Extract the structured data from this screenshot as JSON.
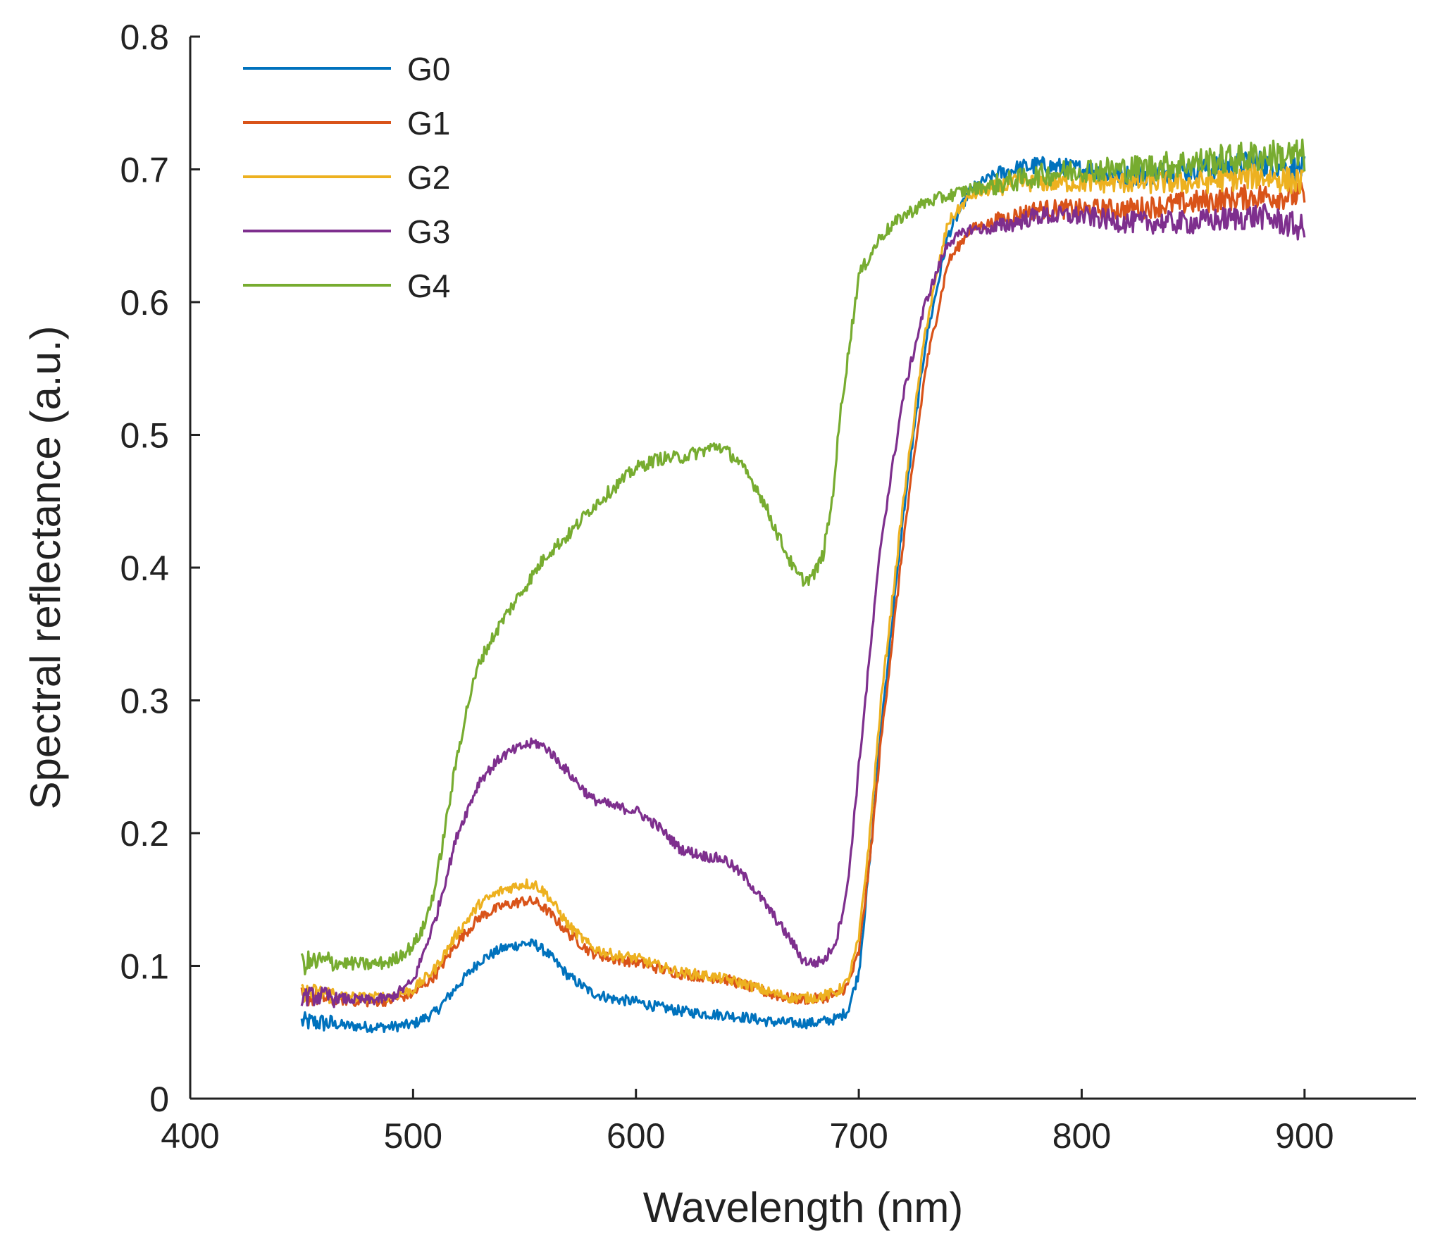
{
  "chart_data": {
    "type": "line",
    "title": "",
    "xlabel": "Wavelength (nm)",
    "ylabel": "Spectral reflectance (a.u.)",
    "xlim": [
      400,
      950
    ],
    "ylim": [
      0,
      0.8
    ],
    "xticks": [
      400,
      500,
      600,
      700,
      800,
      900
    ],
    "xtick_labels": [
      "400",
      "500",
      "600",
      "700",
      "800",
      "900"
    ],
    "yticks": [
      0,
      0.1,
      0.2,
      0.3,
      0.4,
      0.5,
      0.6,
      0.7,
      0.8
    ],
    "ytick_labels": [
      "0",
      "0.1",
      "0.2",
      "0.3",
      "0.4",
      "0.5",
      "0.6",
      "0.7",
      "0.8"
    ],
    "grid": false,
    "legend_position": "top-left",
    "series": [
      {
        "name": "G0",
        "color": "#0072BD",
        "noise": 0.004,
        "x": [
          450,
          460,
          470,
          480,
          490,
          500,
          510,
          520,
          530,
          540,
          550,
          555,
          560,
          570,
          580,
          590,
          600,
          610,
          620,
          630,
          640,
          650,
          660,
          670,
          680,
          690,
          695,
          700,
          705,
          710,
          720,
          730,
          740,
          750,
          760,
          770,
          780,
          800,
          820,
          850,
          880,
          900
        ],
        "y": [
          0.058,
          0.057,
          0.055,
          0.054,
          0.054,
          0.056,
          0.065,
          0.085,
          0.104,
          0.113,
          0.117,
          0.116,
          0.11,
          0.092,
          0.08,
          0.075,
          0.073,
          0.069,
          0.066,
          0.064,
          0.063,
          0.061,
          0.058,
          0.057,
          0.057,
          0.06,
          0.066,
          0.095,
          0.18,
          0.28,
          0.44,
          0.57,
          0.65,
          0.685,
          0.695,
          0.7,
          0.703,
          0.7,
          0.695,
          0.7,
          0.705,
          0.7
        ]
      },
      {
        "name": "G1",
        "color": "#D95319",
        "noise": 0.004,
        "x": [
          450,
          460,
          470,
          480,
          490,
          500,
          510,
          520,
          530,
          540,
          550,
          555,
          560,
          570,
          580,
          590,
          600,
          610,
          620,
          630,
          640,
          650,
          660,
          670,
          680,
          690,
          695,
          700,
          705,
          710,
          720,
          730,
          740,
          750,
          760,
          770,
          780,
          800,
          820,
          850,
          880,
          900
        ],
        "y": [
          0.077,
          0.076,
          0.074,
          0.073,
          0.074,
          0.079,
          0.093,
          0.118,
          0.137,
          0.145,
          0.149,
          0.148,
          0.142,
          0.124,
          0.11,
          0.105,
          0.103,
          0.098,
          0.094,
          0.092,
          0.09,
          0.085,
          0.079,
          0.075,
          0.075,
          0.078,
          0.085,
          0.11,
          0.18,
          0.27,
          0.42,
          0.55,
          0.63,
          0.655,
          0.66,
          0.665,
          0.67,
          0.67,
          0.67,
          0.675,
          0.68,
          0.68
        ]
      },
      {
        "name": "G2",
        "color": "#EDB120",
        "noise": 0.004,
        "x": [
          450,
          460,
          470,
          480,
          490,
          500,
          510,
          520,
          530,
          540,
          550,
          555,
          560,
          570,
          580,
          590,
          600,
          610,
          620,
          630,
          640,
          650,
          660,
          670,
          680,
          690,
          695,
          700,
          705,
          710,
          720,
          730,
          740,
          750,
          760,
          770,
          780,
          800,
          820,
          850,
          880,
          900
        ],
        "y": [
          0.08,
          0.079,
          0.077,
          0.076,
          0.077,
          0.082,
          0.098,
          0.125,
          0.147,
          0.157,
          0.162,
          0.161,
          0.154,
          0.13,
          0.114,
          0.108,
          0.106,
          0.1,
          0.095,
          0.093,
          0.09,
          0.086,
          0.08,
          0.076,
          0.076,
          0.08,
          0.088,
          0.12,
          0.2,
          0.3,
          0.45,
          0.58,
          0.66,
          0.68,
          0.685,
          0.69,
          0.69,
          0.69,
          0.69,
          0.69,
          0.695,
          0.69
        ]
      },
      {
        "name": "G3",
        "color": "#7E2F8E",
        "noise": 0.004,
        "x": [
          450,
          460,
          470,
          480,
          490,
          500,
          510,
          520,
          530,
          540,
          550,
          555,
          560,
          570,
          580,
          590,
          600,
          610,
          620,
          630,
          640,
          650,
          660,
          670,
          675,
          680,
          685,
          690,
          695,
          700,
          710,
          720,
          730,
          740,
          750,
          760,
          770,
          780,
          800,
          820,
          850,
          880,
          900
        ],
        "y": [
          0.077,
          0.077,
          0.075,
          0.074,
          0.076,
          0.088,
          0.135,
          0.2,
          0.24,
          0.258,
          0.266,
          0.268,
          0.264,
          0.245,
          0.226,
          0.22,
          0.217,
          0.205,
          0.188,
          0.183,
          0.18,
          0.165,
          0.142,
          0.118,
          0.104,
          0.102,
          0.105,
          0.12,
          0.16,
          0.25,
          0.42,
          0.53,
          0.6,
          0.645,
          0.655,
          0.655,
          0.66,
          0.665,
          0.665,
          0.66,
          0.66,
          0.665,
          0.655
        ]
      },
      {
        "name": "G4",
        "color": "#77AC30",
        "noise": 0.005,
        "x": [
          450,
          460,
          470,
          480,
          490,
          500,
          505,
          510,
          515,
          520,
          525,
          530,
          540,
          550,
          560,
          570,
          580,
          590,
          600,
          610,
          620,
          630,
          637,
          645,
          655,
          665,
          672,
          676,
          680,
          684,
          688,
          692,
          700,
          710,
          720,
          730,
          740,
          750,
          760,
          780,
          800,
          820,
          850,
          880,
          900
        ],
        "y": [
          0.102,
          0.103,
          0.102,
          0.101,
          0.103,
          0.115,
          0.13,
          0.16,
          0.21,
          0.26,
          0.3,
          0.33,
          0.36,
          0.385,
          0.41,
          0.425,
          0.445,
          0.46,
          0.475,
          0.482,
          0.483,
          0.488,
          0.492,
          0.482,
          0.458,
          0.42,
          0.395,
          0.39,
          0.395,
          0.41,
          0.45,
          0.52,
          0.62,
          0.65,
          0.665,
          0.675,
          0.68,
          0.685,
          0.688,
          0.695,
          0.7,
          0.7,
          0.705,
          0.71,
          0.71
        ]
      }
    ]
  }
}
